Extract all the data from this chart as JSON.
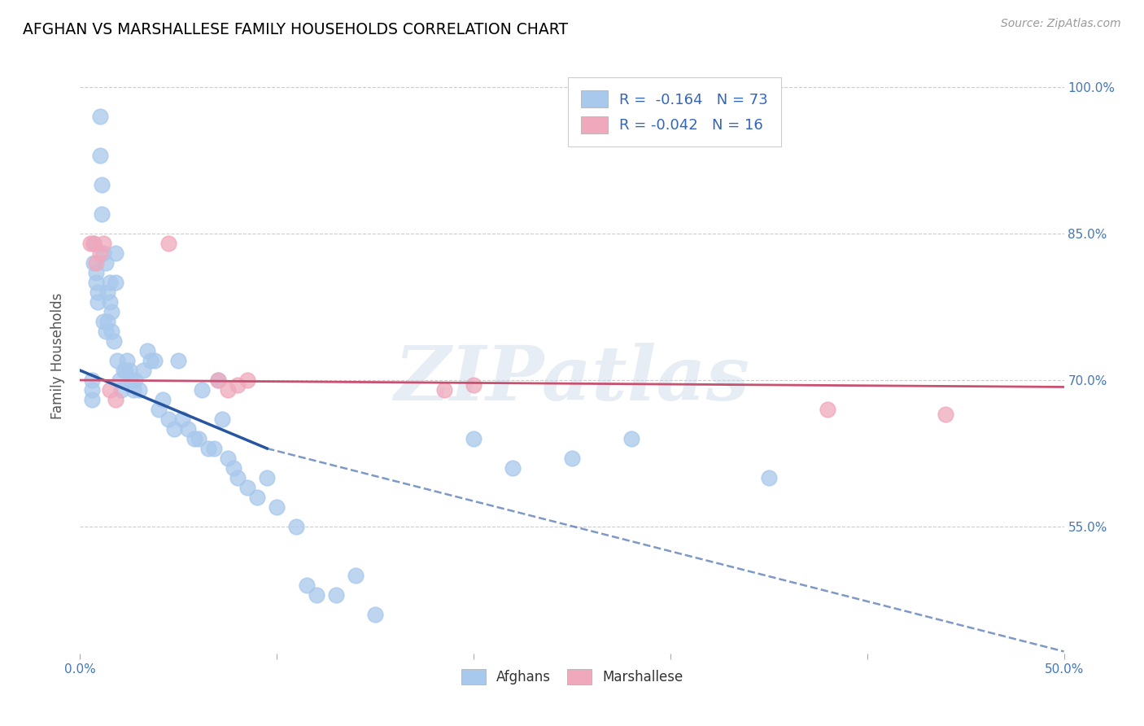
{
  "title": "AFGHAN VS MARSHALLESE FAMILY HOUSEHOLDS CORRELATION CHART",
  "source": "Source: ZipAtlas.com",
  "ylabel": "Family Households",
  "xlim": [
    0.0,
    0.5
  ],
  "ylim": [
    0.42,
    1.03
  ],
  "yticks": [
    0.55,
    0.7,
    0.85,
    1.0
  ],
  "xticks": [
    0.0,
    0.1,
    0.2,
    0.3,
    0.4,
    0.5
  ],
  "xtick_labels": [
    "0.0%",
    "",
    "",
    "",
    "",
    "50.0%"
  ],
  "ytick_labels": [
    "55.0%",
    "70.0%",
    "85.0%",
    "100.0%"
  ],
  "legend_entry1": "R =  -0.164   N = 73",
  "legend_entry2": "R = -0.042   N = 16",
  "color_afghan": "#A8C8EC",
  "color_marshallese": "#F0A8BC",
  "color_trend_afghan": "#2855A0",
  "color_trend_marshallese": "#C85070",
  "watermark": "ZIPatlas",
  "afghans_x": [
    0.006,
    0.006,
    0.006,
    0.007,
    0.007,
    0.008,
    0.008,
    0.009,
    0.009,
    0.01,
    0.01,
    0.011,
    0.011,
    0.012,
    0.012,
    0.013,
    0.013,
    0.014,
    0.014,
    0.015,
    0.015,
    0.016,
    0.016,
    0.017,
    0.018,
    0.018,
    0.019,
    0.02,
    0.021,
    0.022,
    0.023,
    0.024,
    0.025,
    0.026,
    0.027,
    0.028,
    0.03,
    0.032,
    0.034,
    0.036,
    0.038,
    0.04,
    0.042,
    0.045,
    0.048,
    0.05,
    0.052,
    0.055,
    0.058,
    0.06,
    0.062,
    0.065,
    0.068,
    0.07,
    0.072,
    0.075,
    0.078,
    0.08,
    0.085,
    0.09,
    0.095,
    0.1,
    0.11,
    0.115,
    0.12,
    0.13,
    0.14,
    0.15,
    0.2,
    0.22,
    0.25,
    0.28,
    0.35
  ],
  "afghans_y": [
    0.7,
    0.69,
    0.68,
    0.84,
    0.82,
    0.81,
    0.8,
    0.79,
    0.78,
    0.97,
    0.93,
    0.9,
    0.87,
    0.83,
    0.76,
    0.75,
    0.82,
    0.76,
    0.79,
    0.8,
    0.78,
    0.77,
    0.75,
    0.74,
    0.83,
    0.8,
    0.72,
    0.7,
    0.69,
    0.71,
    0.71,
    0.72,
    0.71,
    0.7,
    0.69,
    0.7,
    0.69,
    0.71,
    0.73,
    0.72,
    0.72,
    0.67,
    0.68,
    0.66,
    0.65,
    0.72,
    0.66,
    0.65,
    0.64,
    0.64,
    0.69,
    0.63,
    0.63,
    0.7,
    0.66,
    0.62,
    0.61,
    0.6,
    0.59,
    0.58,
    0.6,
    0.57,
    0.55,
    0.49,
    0.48,
    0.48,
    0.5,
    0.46,
    0.64,
    0.61,
    0.62,
    0.64,
    0.6
  ],
  "marshallese_x": [
    0.005,
    0.007,
    0.008,
    0.01,
    0.012,
    0.015,
    0.018,
    0.045,
    0.07,
    0.075,
    0.08,
    0.085,
    0.185,
    0.2,
    0.38,
    0.44
  ],
  "marshallese_y": [
    0.84,
    0.84,
    0.82,
    0.83,
    0.84,
    0.69,
    0.68,
    0.84,
    0.7,
    0.69,
    0.695,
    0.7,
    0.69,
    0.695,
    0.67,
    0.665
  ],
  "afghan_trend_x0": 0.0,
  "afghan_trend_y0": 0.71,
  "afghan_trend_x1": 0.095,
  "afghan_trend_y1": 0.63,
  "afghan_trend_x2": 0.5,
  "afghan_trend_y2": 0.422,
  "marsh_trend_x0": 0.0,
  "marsh_trend_y0": 0.7,
  "marsh_trend_x1": 0.5,
  "marsh_trend_y1": 0.693
}
